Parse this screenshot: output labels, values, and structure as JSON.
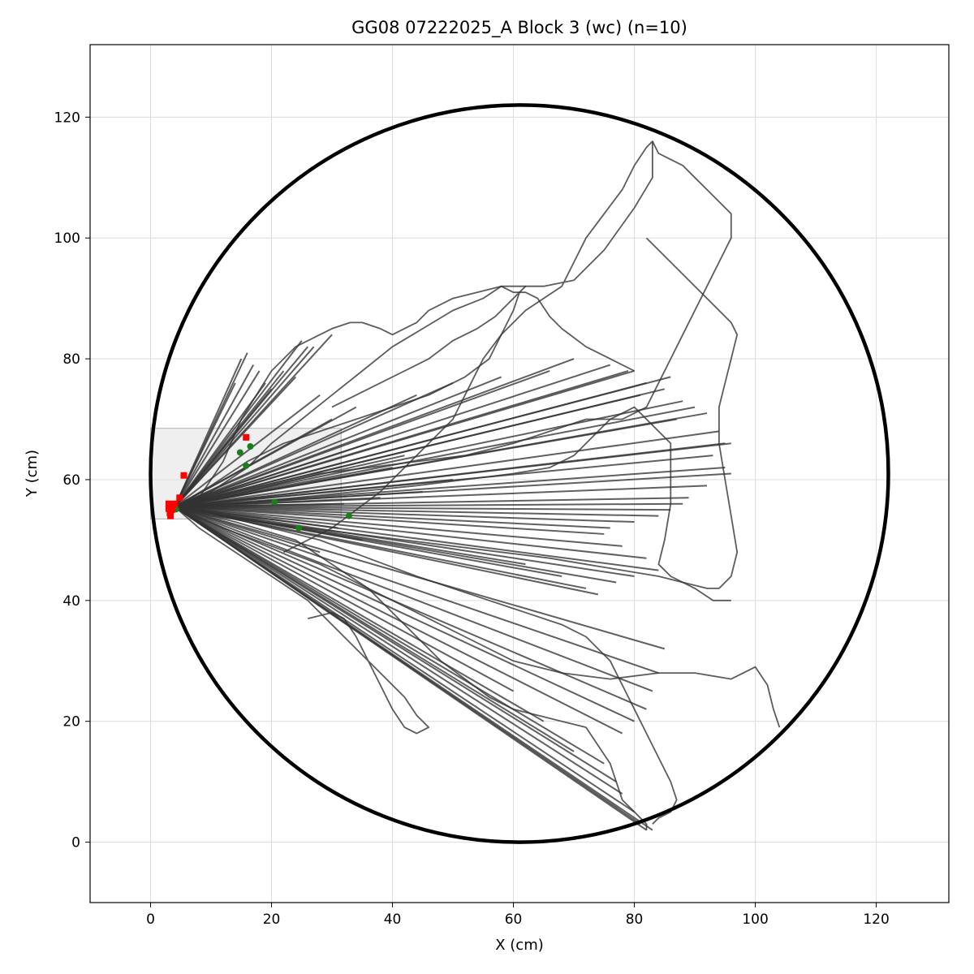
{
  "chart_data": {
    "type": "line",
    "title": "GG08 07222025_A Block 3 (wc) (n=10)",
    "xlabel": "X (cm)",
    "ylabel": "Y (cm)",
    "xlim": [
      -10,
      132
    ],
    "ylim": [
      -10,
      132
    ],
    "xticks": [
      0,
      20,
      40,
      60,
      80,
      100,
      120
    ],
    "yticks": [
      0,
      20,
      40,
      60,
      80,
      100,
      120
    ],
    "grid": true,
    "arena_circle": {
      "cx": 61,
      "cy": 61,
      "r": 61
    },
    "start_zone": {
      "x0": 0,
      "x1": 31.5,
      "y0": 53.5,
      "y1": 68.5
    },
    "trace_color": "#333333",
    "start_marker_color": "#1a7f1a",
    "end_marker_color": "#ff0000",
    "origin": [
      4,
      55.5
    ],
    "ray_endpoints": [
      [
        15,
        80
      ],
      [
        16,
        81
      ],
      [
        17,
        79
      ],
      [
        18,
        78
      ],
      [
        14,
        76
      ],
      [
        19,
        76
      ],
      [
        20,
        75
      ],
      [
        25,
        83
      ],
      [
        26,
        82
      ],
      [
        27,
        82
      ],
      [
        30,
        84
      ],
      [
        22,
        78
      ],
      [
        76,
        79
      ],
      [
        79,
        78
      ],
      [
        80,
        78
      ],
      [
        82,
        76
      ],
      [
        86,
        77
      ],
      [
        81,
        74
      ],
      [
        85,
        75
      ],
      [
        88,
        73
      ],
      [
        90,
        72
      ],
      [
        92,
        71
      ],
      [
        87,
        70
      ],
      [
        94,
        68
      ],
      [
        95,
        66
      ],
      [
        96,
        66
      ],
      [
        93,
        64
      ],
      [
        95,
        62
      ],
      [
        96,
        61
      ],
      [
        92,
        59
      ],
      [
        89,
        57
      ],
      [
        88,
        56
      ],
      [
        86,
        55
      ],
      [
        84,
        54
      ],
      [
        80,
        53
      ],
      [
        76,
        52
      ],
      [
        75,
        51
      ],
      [
        78,
        49
      ],
      [
        82,
        47
      ],
      [
        84,
        45
      ],
      [
        80,
        44
      ],
      [
        77,
        43
      ],
      [
        74,
        41
      ],
      [
        72,
        42
      ],
      [
        68,
        44
      ],
      [
        62,
        46
      ],
      [
        85,
        32
      ],
      [
        84,
        28
      ],
      [
        83,
        25
      ],
      [
        82,
        22
      ],
      [
        80,
        20
      ],
      [
        78,
        18
      ],
      [
        82,
        2
      ],
      [
        81,
        3
      ],
      [
        83,
        2
      ],
      [
        80,
        5
      ],
      [
        78,
        8
      ],
      [
        77,
        10
      ],
      [
        75,
        13
      ],
      [
        70,
        15
      ],
      [
        65,
        20
      ],
      [
        60,
        25
      ],
      [
        31,
        52
      ],
      [
        35,
        50
      ],
      [
        28,
        48
      ],
      [
        32,
        56
      ],
      [
        38,
        57
      ],
      [
        45,
        58
      ],
      [
        50,
        60
      ],
      [
        40,
        62
      ],
      [
        42,
        64
      ],
      [
        36,
        66
      ],
      [
        30,
        70
      ],
      [
        34,
        72
      ],
      [
        28,
        74
      ],
      [
        24,
        77
      ],
      [
        44,
        74
      ],
      [
        50,
        76
      ],
      [
        58,
        77
      ],
      [
        66,
        78
      ],
      [
        70,
        80
      ]
    ],
    "paths": [
      [
        [
          4,
          55.5
        ],
        [
          8,
          57
        ],
        [
          12,
          63
        ],
        [
          15,
          70
        ],
        [
          20,
          78
        ],
        [
          24,
          82
        ],
        [
          28,
          84
        ],
        [
          30,
          85
        ],
        [
          33,
          86
        ],
        [
          35,
          86
        ],
        [
          38,
          85
        ],
        [
          40,
          84
        ],
        [
          44,
          86
        ],
        [
          46,
          88
        ],
        [
          50,
          90
        ],
        [
          54,
          91
        ],
        [
          58,
          92
        ],
        [
          60,
          91
        ],
        [
          62,
          91
        ],
        [
          64,
          90
        ],
        [
          66,
          87
        ],
        [
          68,
          85
        ],
        [
          72,
          82
        ],
        [
          76,
          80
        ],
        [
          80,
          78
        ]
      ],
      [
        [
          4,
          55.5
        ],
        [
          10,
          58
        ],
        [
          16,
          62
        ],
        [
          20,
          66
        ],
        [
          25,
          70
        ],
        [
          30,
          74
        ],
        [
          35,
          78
        ],
        [
          40,
          82
        ],
        [
          45,
          85
        ],
        [
          50,
          88
        ],
        [
          55,
          90
        ],
        [
          58,
          92
        ],
        [
          60,
          92
        ],
        [
          62,
          92
        ],
        [
          65,
          92
        ],
        [
          70,
          93
        ],
        [
          75,
          98
        ],
        [
          80,
          105
        ],
        [
          83,
          110
        ],
        [
          83,
          116
        ],
        [
          82,
          115
        ],
        [
          80,
          112
        ],
        [
          78,
          108
        ],
        [
          75,
          104
        ],
        [
          72,
          100
        ],
        [
          70,
          96
        ],
        [
          68,
          92
        ],
        [
          65,
          90
        ],
        [
          62,
          88
        ],
        [
          60,
          86
        ],
        [
          58,
          84
        ],
        [
          55,
          80
        ],
        [
          53,
          76
        ],
        [
          50,
          70
        ],
        [
          46,
          66
        ],
        [
          42,
          62
        ],
        [
          38,
          58
        ],
        [
          34,
          55
        ],
        [
          30,
          52
        ],
        [
          26,
          50
        ],
        [
          22,
          48
        ]
      ],
      [
        [
          4,
          55.5
        ],
        [
          12,
          57
        ],
        [
          20,
          59
        ],
        [
          28,
          61
        ],
        [
          36,
          62
        ],
        [
          44,
          63
        ],
        [
          52,
          64
        ],
        [
          60,
          66
        ],
        [
          66,
          68
        ],
        [
          72,
          70
        ],
        [
          78,
          70
        ],
        [
          82,
          72
        ],
        [
          84,
          76
        ],
        [
          86,
          80
        ],
        [
          88,
          84
        ],
        [
          90,
          88
        ],
        [
          92,
          92
        ],
        [
          94,
          96
        ],
        [
          96,
          100
        ],
        [
          96,
          104
        ],
        [
          94,
          106
        ],
        [
          92,
          108
        ],
        [
          90,
          110
        ],
        [
          88,
          112
        ],
        [
          86,
          113
        ],
        [
          84,
          114
        ],
        [
          83,
          116
        ]
      ],
      [
        [
          4,
          55.5
        ],
        [
          8,
          52
        ],
        [
          14,
          48
        ],
        [
          20,
          44
        ],
        [
          26,
          40
        ],
        [
          30,
          36
        ],
        [
          34,
          32
        ],
        [
          38,
          28
        ],
        [
          42,
          24
        ],
        [
          44,
          21
        ],
        [
          46,
          19
        ],
        [
          44,
          18
        ],
        [
          42,
          19
        ],
        [
          40,
          22
        ],
        [
          38,
          26
        ],
        [
          36,
          30
        ],
        [
          34,
          34
        ],
        [
          32,
          37
        ],
        [
          30,
          38
        ],
        [
          26,
          37
        ]
      ],
      [
        [
          4,
          55.5
        ],
        [
          12,
          54
        ],
        [
          20,
          52
        ],
        [
          28,
          50
        ],
        [
          36,
          47
        ],
        [
          44,
          44
        ],
        [
          50,
          42
        ],
        [
          56,
          40
        ],
        [
          62,
          38
        ],
        [
          68,
          36
        ],
        [
          72,
          34
        ],
        [
          76,
          30
        ],
        [
          78,
          26
        ],
        [
          80,
          22
        ],
        [
          82,
          18
        ],
        [
          84,
          14
        ],
        [
          86,
          10
        ],
        [
          87,
          7
        ],
        [
          86,
          5
        ],
        [
          84,
          4
        ],
        [
          83,
          3
        ]
      ],
      [
        [
          4,
          55.5
        ],
        [
          10,
          54
        ],
        [
          18,
          53
        ],
        [
          26,
          52
        ],
        [
          34,
          51
        ],
        [
          42,
          50
        ],
        [
          50,
          49
        ],
        [
          58,
          48
        ],
        [
          66,
          47
        ],
        [
          72,
          46
        ],
        [
          78,
          45
        ],
        [
          84,
          44
        ],
        [
          88,
          43
        ],
        [
          92,
          42
        ],
        [
          94,
          42
        ],
        [
          96,
          44
        ],
        [
          97,
          48
        ],
        [
          96,
          54
        ],
        [
          95,
          60
        ],
        [
          94,
          66
        ],
        [
          94,
          72
        ],
        [
          95,
          76
        ],
        [
          96,
          80
        ],
        [
          97,
          84
        ],
        [
          96,
          86
        ],
        [
          94,
          88
        ],
        [
          92,
          90
        ],
        [
          90,
          92
        ],
        [
          88,
          94
        ],
        [
          86,
          96
        ],
        [
          84,
          98
        ],
        [
          82,
          100
        ]
      ],
      [
        [
          4,
          55.5
        ],
        [
          12,
          52
        ],
        [
          20,
          49
        ],
        [
          28,
          46
        ],
        [
          36,
          42
        ],
        [
          44,
          38
        ],
        [
          52,
          34
        ],
        [
          60,
          30
        ],
        [
          68,
          28
        ],
        [
          76,
          27
        ],
        [
          84,
          28
        ],
        [
          90,
          28
        ],
        [
          96,
          27
        ],
        [
          100,
          29
        ],
        [
          102,
          26
        ],
        [
          103,
          22
        ],
        [
          104,
          19
        ]
      ],
      [
        [
          4,
          55.5
        ],
        [
          14,
          56
        ],
        [
          24,
          57
        ],
        [
          34,
          58
        ],
        [
          44,
          59
        ],
        [
          52,
          60
        ],
        [
          60,
          61
        ],
        [
          66,
          62
        ],
        [
          70,
          64
        ],
        [
          72,
          66
        ],
        [
          74,
          68
        ],
        [
          76,
          70
        ],
        [
          78,
          71
        ],
        [
          80,
          72
        ],
        [
          82,
          70
        ],
        [
          84,
          68
        ],
        [
          86,
          66
        ],
        [
          86,
          62
        ],
        [
          86,
          56
        ],
        [
          85,
          50
        ],
        [
          84,
          46
        ],
        [
          86,
          44
        ],
        [
          90,
          42
        ],
        [
          93,
          40
        ],
        [
          96,
          40
        ]
      ],
      [
        [
          4,
          55.5
        ],
        [
          10,
          59
        ],
        [
          16,
          63
        ],
        [
          22,
          66
        ],
        [
          28,
          68
        ],
        [
          34,
          70
        ],
        [
          40,
          72
        ],
        [
          46,
          74
        ],
        [
          52,
          77
        ],
        [
          56,
          80
        ],
        [
          58,
          84
        ],
        [
          60,
          88
        ],
        [
          61,
          91
        ],
        [
          62,
          92
        ],
        [
          60,
          90
        ],
        [
          57,
          87
        ],
        [
          54,
          85
        ],
        [
          50,
          83
        ],
        [
          46,
          80
        ],
        [
          42,
          78
        ],
        [
          38,
          76
        ],
        [
          34,
          74
        ],
        [
          30,
          72
        ]
      ],
      [
        [
          4,
          55.5
        ],
        [
          14,
          53
        ],
        [
          24,
          50
        ],
        [
          30,
          46
        ],
        [
          36,
          42
        ],
        [
          40,
          38
        ],
        [
          44,
          34
        ],
        [
          48,
          30
        ],
        [
          52,
          27
        ],
        [
          56,
          24
        ],
        [
          60,
          22
        ],
        [
          64,
          21
        ],
        [
          68,
          20
        ],
        [
          72,
          19
        ],
        [
          74,
          16
        ],
        [
          76,
          13
        ],
        [
          77,
          10
        ],
        [
          78,
          7
        ],
        [
          80,
          5
        ],
        [
          82,
          3
        ],
        [
          82,
          2
        ]
      ]
    ],
    "end_markers": [
      [
        3,
        56
      ],
      [
        3.5,
        55
      ],
      [
        3.2,
        54.5
      ],
      [
        4.8,
        57
      ],
      [
        5.5,
        60.7
      ],
      [
        15.8,
        67
      ],
      [
        3.3,
        54
      ],
      [
        4,
        56
      ],
      [
        3.6,
        55.5
      ],
      [
        3,
        55.2
      ]
    ],
    "start_markers": [
      [
        14.8,
        64.5
      ],
      [
        16.5,
        65.5
      ],
      [
        15.8,
        62.3
      ],
      [
        20.5,
        56.3
      ],
      [
        24.5,
        52
      ],
      [
        32.8,
        54
      ],
      [
        4.2,
        55.1
      ]
    ]
  }
}
